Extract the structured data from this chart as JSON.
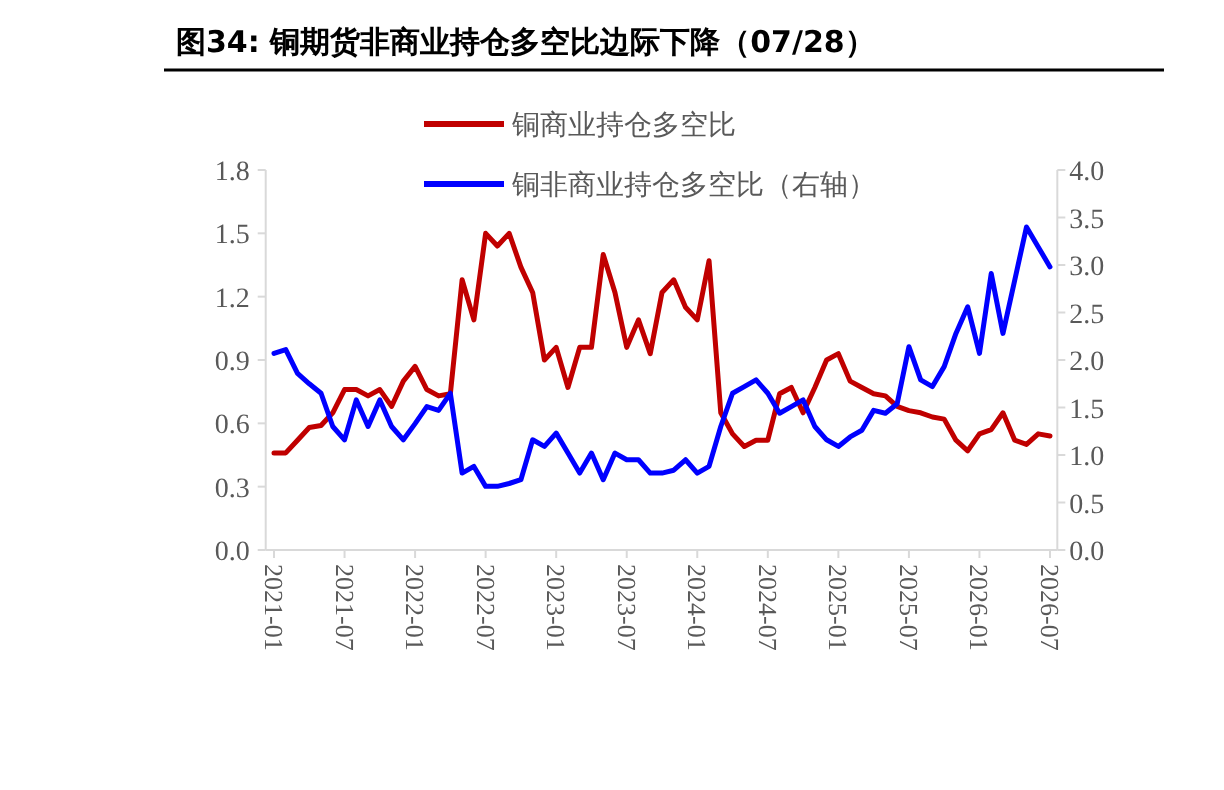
{
  "chart_data": {
    "type": "line",
    "title": "图34:  铜期货非商业持仓多空比边际下降（07/28）",
    "x": [
      "2021-01",
      "2021-02",
      "2021-03",
      "2021-04",
      "2021-05",
      "2021-06",
      "2021-07",
      "2021-08",
      "2021-09",
      "2021-10",
      "2021-11",
      "2021-12",
      "2022-01",
      "2022-02",
      "2022-03",
      "2022-04",
      "2022-05",
      "2022-06",
      "2022-07",
      "2022-08",
      "2022-09",
      "2022-10",
      "2022-11",
      "2022-12",
      "2023-01",
      "2023-02",
      "2023-03",
      "2023-04",
      "2023-05",
      "2023-06",
      "2023-07",
      "2023-08",
      "2023-09",
      "2023-10",
      "2023-11",
      "2023-12",
      "2024-01",
      "2024-02",
      "2024-03",
      "2024-04",
      "2024-05",
      "2024-06",
      "2024-07",
      "2024-08",
      "2024-09",
      "2024-10",
      "2024-11",
      "2024-12",
      "2025-01",
      "2025-02",
      "2025-03",
      "2025-04",
      "2025-05",
      "2025-06",
      "2025-07",
      "2025-08",
      "2025-09",
      "2025-10",
      "2025-11",
      "2025-12",
      "2026-01",
      "2026-02",
      "2026-03",
      "2026-04",
      "2026-05",
      "2026-06",
      "2026-07"
    ],
    "series": [
      {
        "name": "铜商业持仓多空比",
        "color": "#c00000",
        "values": [
          0.46,
          0.46,
          0.52,
          0.58,
          0.59,
          0.65,
          0.76,
          0.76,
          0.73,
          0.76,
          0.68,
          0.8,
          0.87,
          0.76,
          0.73,
          0.74,
          1.28,
          1.09,
          1.5,
          1.44,
          1.5,
          1.34,
          1.22,
          0.9,
          0.96,
          0.77,
          0.96,
          0.96,
          1.4,
          1.22,
          0.96,
          1.09,
          0.93,
          1.22,
          1.28,
          1.15,
          1.09,
          1.37,
          0.65,
          0.55,
          0.49,
          0.52,
          0.52,
          0.74,
          0.77,
          0.65,
          0.77,
          0.9,
          0.93,
          0.8,
          0.77,
          0.74,
          0.73,
          0.68,
          0.66,
          0.65,
          0.63,
          0.62,
          0.52,
          0.47,
          0.55,
          0.57,
          0.65,
          0.52,
          0.5,
          0.55,
          0.54
        ]
      },
      {
        "name": "铜非商业持仓多空比（右轴）",
        "color": "#0000ff",
        "axis": "y2",
        "values": [
          2.07,
          2.11,
          1.86,
          1.75,
          1.65,
          1.3,
          1.16,
          1.58,
          1.3,
          1.58,
          1.3,
          1.16,
          1.33,
          1.51,
          1.47,
          1.65,
          0.81,
          0.88,
          0.67,
          0.67,
          0.7,
          0.74,
          1.16,
          1.09,
          1.23,
          1.02,
          0.81,
          1.02,
          0.74,
          1.02,
          0.95,
          0.95,
          0.81,
          0.81,
          0.84,
          0.95,
          0.81,
          0.88,
          1.3,
          1.65,
          1.72,
          1.79,
          1.65,
          1.44,
          1.51,
          1.58,
          1.3,
          1.16,
          1.09,
          1.19,
          1.26,
          1.47,
          1.44,
          1.54,
          2.14,
          1.79,
          1.72,
          1.93,
          2.28,
          2.56,
          2.07,
          2.91,
          2.28,
          2.84,
          3.4,
          3.19,
          2.98
        ]
      }
    ],
    "xlim": [
      "2020-12-10",
      "2026-07-20"
    ],
    "xticks": [
      "2021-01",
      "2021-07",
      "2022-01",
      "2022-07",
      "2023-01",
      "2023-07",
      "2024-01",
      "2024-07",
      "2025-01",
      "2025-07",
      "2026-01",
      "2026-07"
    ],
    "ylim": [
      0,
      1.8
    ],
    "yticks": [
      {
        "value": 0,
        "label": "0.0"
      },
      {
        "value": 0.3,
        "label": "0.3"
      },
      {
        "value": 0.6,
        "label": "0.6"
      },
      {
        "value": 0.9,
        "label": "0.9"
      },
      {
        "value": 1.2,
        "label": "1.2"
      },
      {
        "value": 1.5,
        "label": "1.5"
      },
      {
        "value": 1.8,
        "label": "1.8"
      }
    ],
    "y2lim": [
      0,
      4
    ],
    "y2ticks": [
      {
        "value": 0,
        "label": "0.0"
      },
      {
        "value": 0.5,
        "label": "0.5"
      },
      {
        "value": 1,
        "label": "1.0"
      },
      {
        "value": 1.5,
        "label": "1.5"
      },
      {
        "value": 2,
        "label": "2.0"
      },
      {
        "value": 2.5,
        "label": "2.5"
      },
      {
        "value": 3,
        "label": "3.0"
      },
      {
        "value": 3.5,
        "label": "3.5"
      },
      {
        "value": 4,
        "label": "4.0"
      }
    ],
    "legend": "top",
    "grid": false,
    "marker": "none",
    "line_style": "solid"
  }
}
